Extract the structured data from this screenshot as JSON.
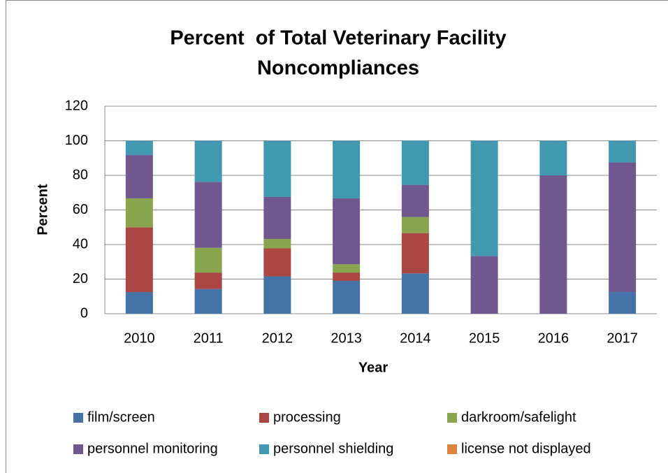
{
  "chart_data": {
    "type": "stacked_bar",
    "title": [
      "Percent  of Total Veterinary Facility",
      "Noncompliances"
    ],
    "x_label": "Year",
    "y_label": "Percent",
    "categories": [
      "2010",
      "2011",
      "2012",
      "2013",
      "2014",
      "2015",
      "2016",
      "2017"
    ],
    "series": [
      {
        "name": "film/screen",
        "color": "#4572A7",
        "values": [
          12.5,
          14.3,
          21.6,
          19.0,
          23.3,
          0,
          0,
          12.5
        ]
      },
      {
        "name": "processing",
        "color": "#AA4643",
        "values": [
          37.5,
          9.5,
          16.2,
          4.8,
          23.3,
          0,
          0,
          0
        ]
      },
      {
        "name": "darkroom/safelight",
        "color": "#89A54E",
        "values": [
          16.7,
          14.3,
          5.4,
          4.8,
          9.3,
          0,
          0,
          0
        ]
      },
      {
        "name": "personnel monitoring",
        "color": "#71588F",
        "values": [
          25.0,
          38.1,
          24.3,
          38.1,
          18.6,
          33.3,
          80.0,
          75.0
        ]
      },
      {
        "name": "personnel shielding",
        "color": "#4198AF",
        "values": [
          8.3,
          23.8,
          32.4,
          33.3,
          25.6,
          66.7,
          20.0,
          12.5
        ]
      },
      {
        "name": "license not displayed",
        "color": "#DB843D",
        "values": [
          0,
          0,
          0,
          0,
          0,
          0,
          0,
          0
        ]
      }
    ],
    "ylim": [
      0,
      120
    ],
    "yticks": [
      0,
      20,
      40,
      60,
      80,
      100,
      120
    ],
    "grid": true,
    "legend": "bottom"
  }
}
